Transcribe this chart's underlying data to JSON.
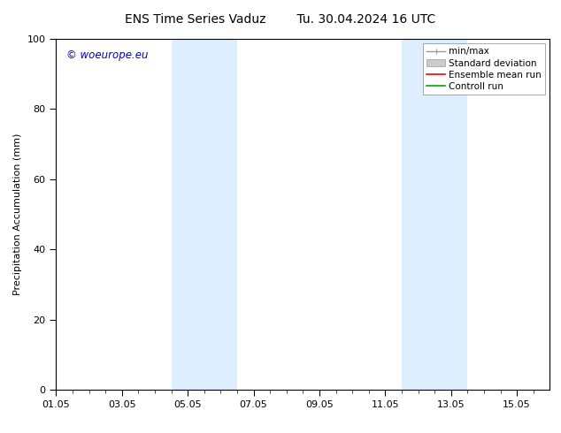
{
  "title_left": "ENS Time Series Vaduz",
  "title_right": "Tu. 30.04.2024 16 UTC",
  "ylabel": "Precipitation Accumulation (mm)",
  "xlim_start": 0.0,
  "xlim_end": 15.0,
  "ylim": [
    0,
    100
  ],
  "yticks": [
    0,
    20,
    40,
    60,
    80,
    100
  ],
  "xtick_labels": [
    "01.05",
    "03.05",
    "05.05",
    "07.05",
    "09.05",
    "11.05",
    "13.05",
    "15.05"
  ],
  "xtick_positions": [
    0,
    2,
    4,
    6,
    8,
    10,
    12,
    14
  ],
  "minor_xtick_positions": [
    0,
    0.5,
    1,
    1.5,
    2,
    2.5,
    3,
    3.5,
    4,
    4.5,
    5,
    5.5,
    6,
    6.5,
    7,
    7.5,
    8,
    8.5,
    9,
    9.5,
    10,
    10.5,
    11,
    11.5,
    12,
    12.5,
    13,
    13.5,
    14,
    14.5
  ],
  "shaded_bands": [
    {
      "x_start": 3.5,
      "x_end": 4.5,
      "color": "#ddeeff"
    },
    {
      "x_start": 4.5,
      "x_end": 5.5,
      "color": "#ddeeff"
    },
    {
      "x_start": 10.5,
      "x_end": 11.5,
      "color": "#ddeeff"
    },
    {
      "x_start": 11.5,
      "x_end": 12.5,
      "color": "#ddeeff"
    }
  ],
  "shaded_color": "#ddeeff",
  "background_color": "#ffffff",
  "watermark_text": "© woeurope.eu",
  "watermark_color": "#0000cc",
  "title_fontsize": 10,
  "label_fontsize": 8,
  "tick_fontsize": 8,
  "legend_fontsize": 7.5
}
